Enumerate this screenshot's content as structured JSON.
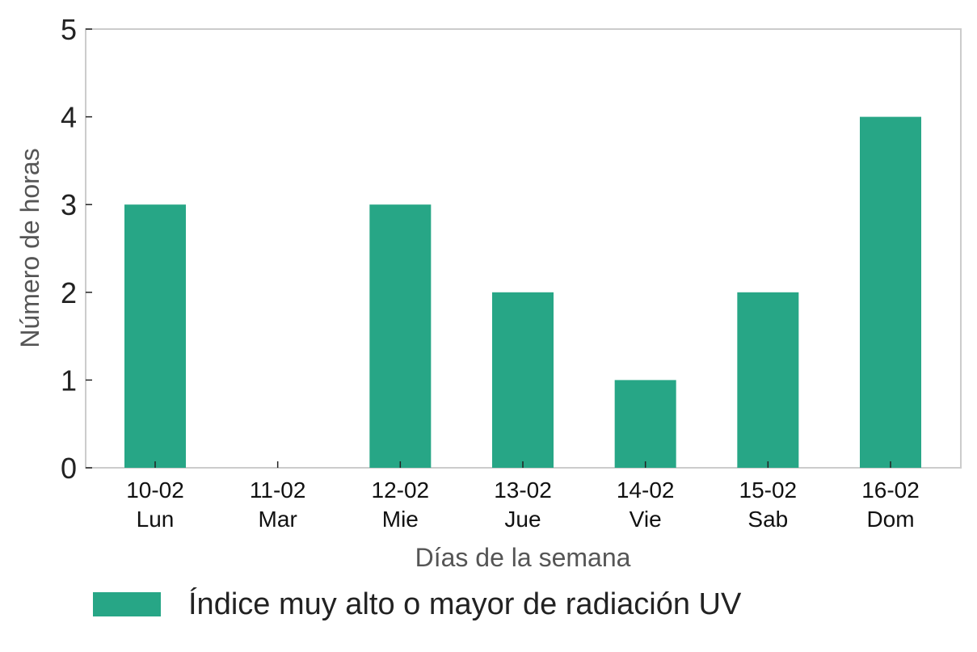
{
  "chart_data": {
    "type": "bar",
    "categories": [
      [
        "10-02",
        "Lun"
      ],
      [
        "11-02",
        "Mar"
      ],
      [
        "12-02",
        "Mie"
      ],
      [
        "13-02",
        "Jue"
      ],
      [
        "14-02",
        "Vie"
      ],
      [
        "15-02",
        "Sab"
      ],
      [
        "16-02",
        "Dom"
      ]
    ],
    "series": [
      {
        "name": "Índice muy alto o mayor de radiación UV",
        "values": [
          3,
          0,
          3,
          2,
          1,
          2,
          4
        ]
      }
    ],
    "xlabel": "Días de la semana",
    "ylabel": "Número de horas",
    "ylim": [
      0,
      5
    ],
    "yticks": [
      0,
      1,
      2,
      3,
      4,
      5
    ],
    "bar_color": "#27a686",
    "grid": false,
    "legend_position": "bottom-left"
  }
}
